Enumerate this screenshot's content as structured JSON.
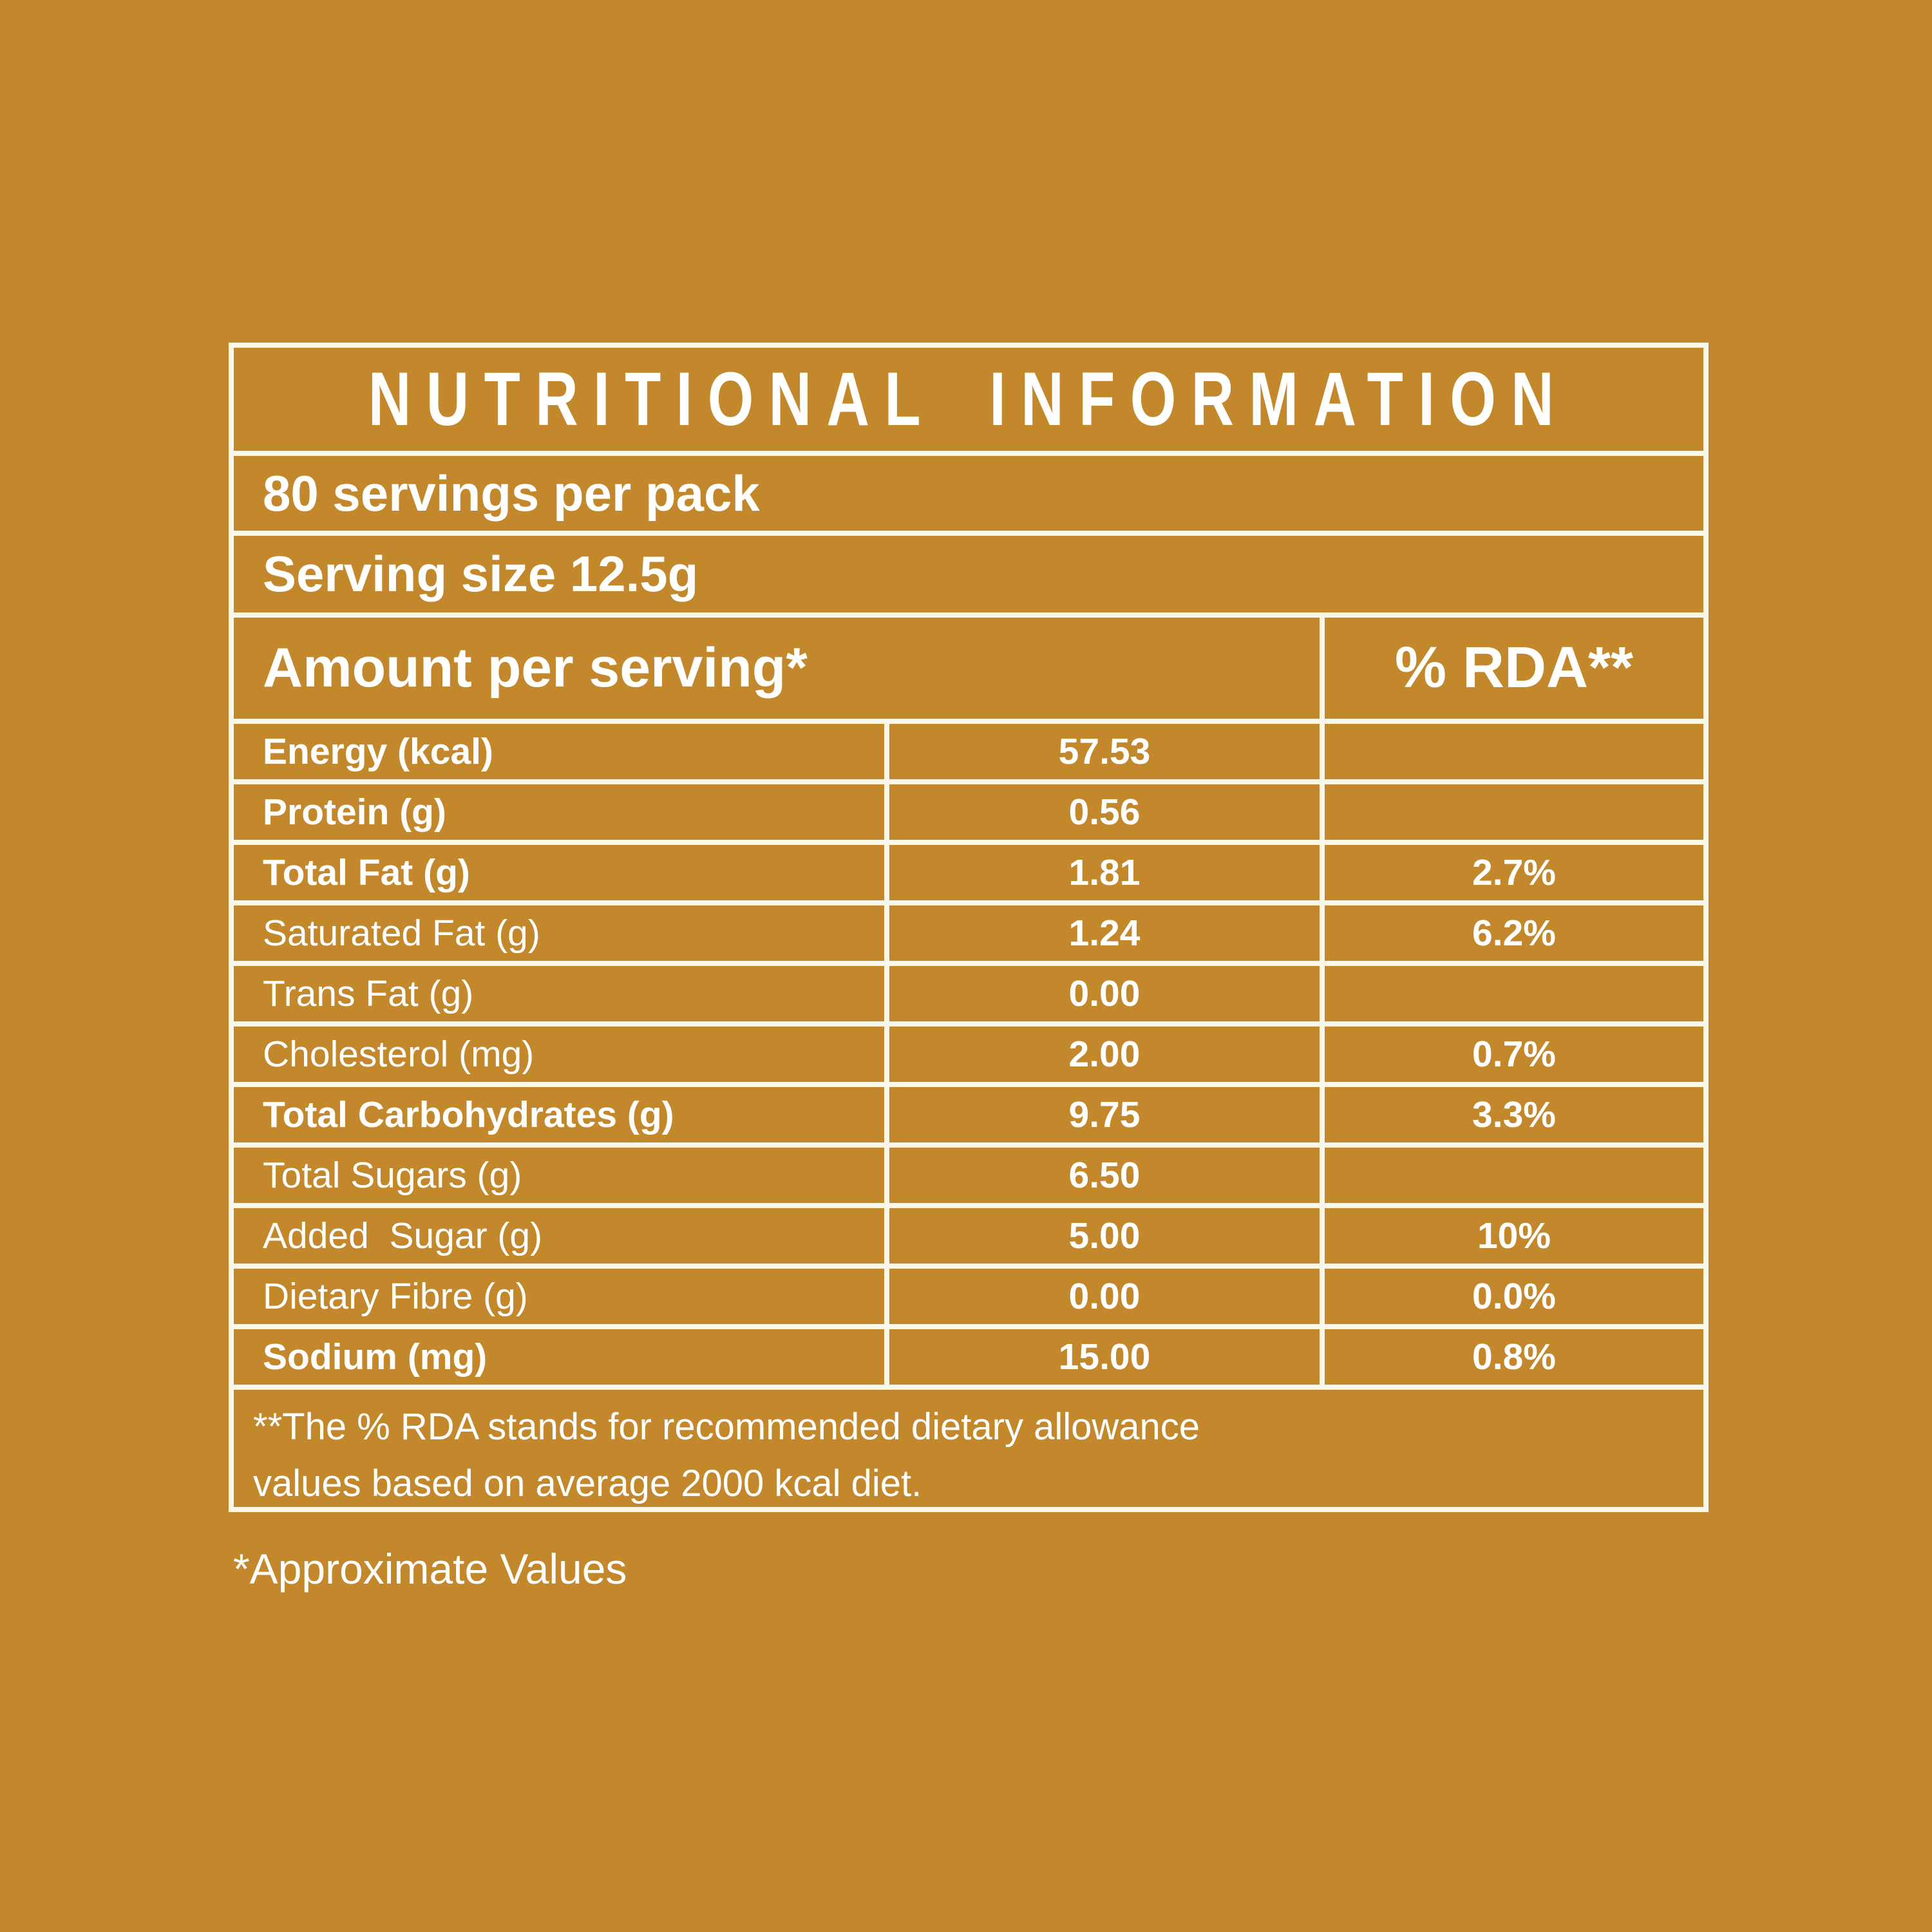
{
  "colors": {
    "background": "#C2882B",
    "line": "#FAF6EA",
    "text": "#FFFFFF"
  },
  "table": {
    "title": "NUTRITIONAL INFORMATION",
    "servings_per_pack": "80 servings per pack",
    "serving_size": "Serving size 12.5g",
    "header": {
      "amount": "Amount per serving*",
      "rda": "% RDA**"
    },
    "rows": [
      {
        "label": "Energy (kcal)",
        "value": "57.53",
        "rda": ""
      },
      {
        "label": "Protein (g)",
        "value": "0.56",
        "rda": ""
      },
      {
        "label": "Total Fat (g)",
        "value": "1.81",
        "rda": "2.7%"
      },
      {
        "label": "Saturated Fat (g)",
        "value": "1.24",
        "rda": "6.2%"
      },
      {
        "label": "Trans Fat (g)",
        "value": "0.00",
        "rda": ""
      },
      {
        "label": "Cholesterol (mg)",
        "value": "2.00",
        "rda": "0.7%"
      },
      {
        "label": "Total Carbohydrates (g)",
        "value": "9.75",
        "rda": "3.3%"
      },
      {
        "label": "Total Sugars (g)",
        "value": "6.50",
        "rda": ""
      },
      {
        "label": "Added  Sugar (g)",
        "value": "5.00",
        "rda": "10%"
      },
      {
        "label": "Dietary Fibre (g)",
        "value": "0.00",
        "rda": "0.0%"
      },
      {
        "label": "Sodium (mg)",
        "value": "15.00",
        "rda": "0.8%"
      }
    ],
    "footnote_line1": "**The % RDA stands for recommended dietary allowance",
    "footnote_line2": "values based on average 2000 kcal diet.",
    "approximate_note": "*Approximate Values"
  }
}
